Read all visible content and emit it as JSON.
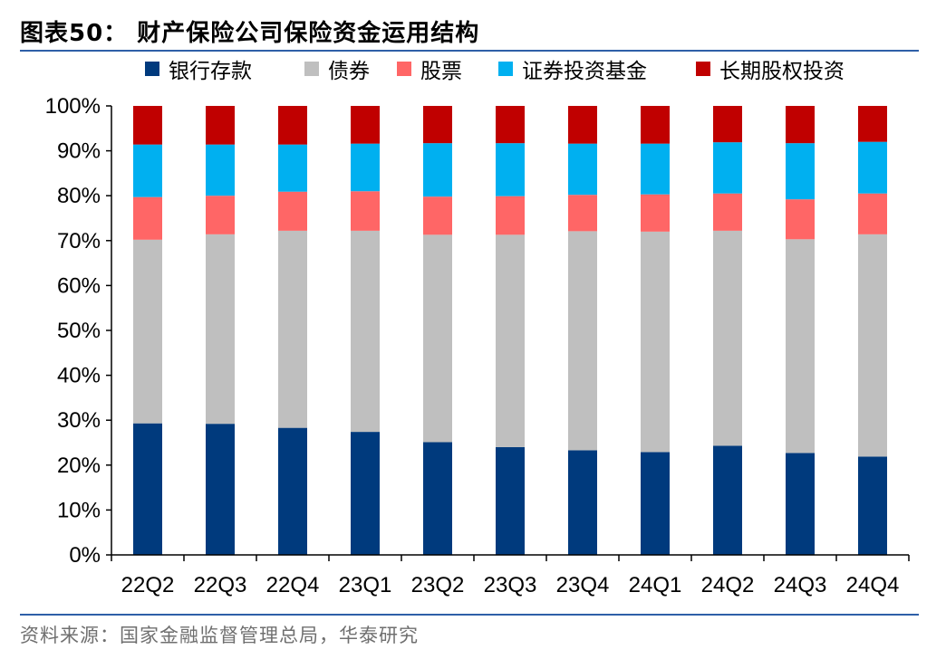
{
  "title": "图表50：  财产保险公司保险资金运用结构",
  "source": "资料来源：国家金融监督管理总局，华泰研究",
  "chart_data": {
    "type": "bar",
    "stacked": true,
    "categories": [
      "22Q2",
      "22Q3",
      "22Q4",
      "23Q1",
      "23Q2",
      "23Q3",
      "23Q4",
      "24Q1",
      "24Q2",
      "24Q3",
      "24Q4"
    ],
    "series": [
      {
        "name": "银行存款",
        "color": "#003a7d",
        "values": [
          29.3,
          29.2,
          28.3,
          27.4,
          25.1,
          24.0,
          23.3,
          22.9,
          24.3,
          22.7,
          21.9
        ]
      },
      {
        "name": "债券",
        "color": "#bfbfbf",
        "values": [
          40.9,
          42.2,
          43.9,
          44.8,
          46.2,
          47.3,
          48.8,
          49.1,
          47.9,
          47.6,
          49.5
        ]
      },
      {
        "name": "股票",
        "color": "#ff6666",
        "values": [
          9.5,
          8.6,
          8.7,
          8.8,
          8.5,
          8.6,
          8.1,
          8.3,
          8.3,
          8.9,
          9.1
        ]
      },
      {
        "name": "证券投资基金",
        "color": "#00b0f0",
        "values": [
          11.7,
          11.4,
          10.5,
          10.6,
          11.9,
          11.8,
          11.4,
          11.3,
          11.4,
          12.5,
          11.5
        ]
      },
      {
        "name": "长期股权投资",
        "color": "#c00000",
        "values": [
          8.6,
          8.6,
          8.6,
          8.4,
          8.3,
          8.3,
          8.4,
          8.4,
          8.1,
          8.3,
          8.0
        ]
      }
    ],
    "y_ticks": [
      "0%",
      "10%",
      "20%",
      "30%",
      "40%",
      "50%",
      "60%",
      "70%",
      "80%",
      "90%",
      "100%"
    ],
    "ylim": [
      0,
      100
    ],
    "grid": false,
    "legend_position": "top"
  }
}
